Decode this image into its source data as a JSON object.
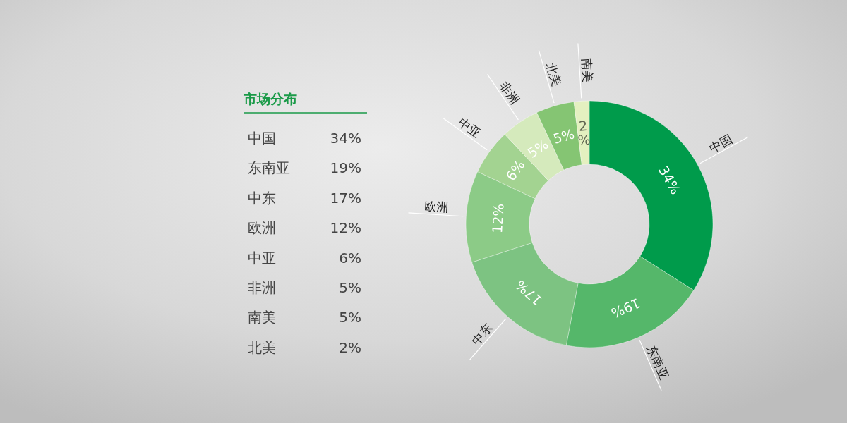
{
  "chart_data": [
    {
      "type": "other",
      "title": "市场分布",
      "categories": [
        "中国",
        "东南亚",
        "中东",
        "欧洲",
        "中亚",
        "非洲",
        "南美",
        "北美"
      ],
      "value_labels": [
        "34%",
        "19%",
        "17%",
        "12%",
        "6%",
        "5%",
        "5%",
        "2%"
      ]
    },
    {
      "type": "donut",
      "categories": [
        "中国",
        "东南亚",
        "中东",
        "欧洲",
        "中亚",
        "非洲",
        "北美",
        "南美"
      ],
      "values": [
        34,
        19,
        17,
        12,
        6,
        5,
        5,
        2
      ],
      "colors": [
        "#009b4b",
        "#55b76a",
        "#7dc382",
        "#8ccb87",
        "#a3d391",
        "#d5eabc",
        "#85c573",
        "#e4f0c0"
      ],
      "value_labels": [
        "34%",
        "19%",
        "17%",
        "12%",
        "6%",
        "5%",
        "5%",
        "2%"
      ]
    }
  ]
}
